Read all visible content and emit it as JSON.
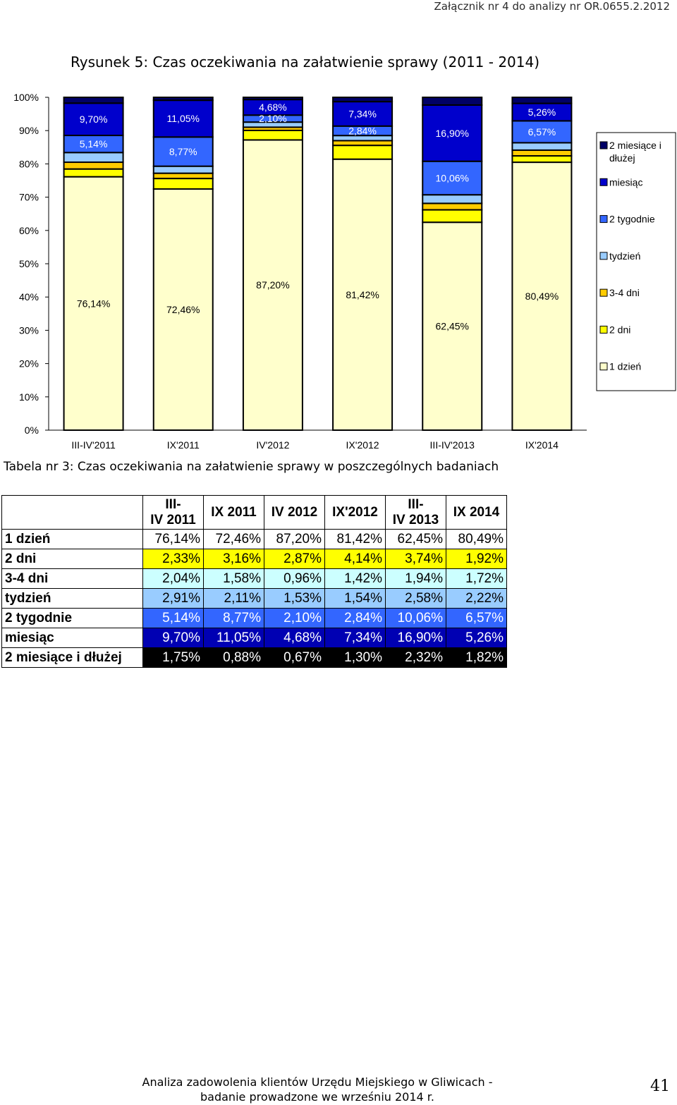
{
  "header": {
    "note": "Załącznik nr 4 do analizy nr OR.0655.2.2012"
  },
  "figure_title": "Rysunek 5: Czas oczekiwania na załatwienie sprawy (2011 - 2014)",
  "chart_data": {
    "type": "bar",
    "stacked": true,
    "percent_stacked": true,
    "categories": [
      "III-IV'2011",
      "IX'2011",
      "IV'2012",
      "IX'2012",
      "III-IV'2013",
      "IX'2014"
    ],
    "series": [
      {
        "name": "1 dzień",
        "values": [
          76.14,
          72.46,
          87.2,
          81.42,
          62.45,
          80.49
        ],
        "color": "#ffffcc",
        "label_color": "#000000",
        "data_labels": [
          "76,14%",
          "72,46%",
          "87,20%",
          "81,42%",
          "62,45%",
          "80,49%"
        ]
      },
      {
        "name": "2 dni",
        "values": [
          2.33,
          3.16,
          2.87,
          4.14,
          3.74,
          1.92
        ],
        "color": "#ffff00"
      },
      {
        "name": "3-4 dni",
        "values": [
          2.04,
          1.58,
          0.96,
          1.42,
          1.94,
          1.72
        ],
        "color": "#ffcc00"
      },
      {
        "name": "tydzień",
        "values": [
          2.91,
          2.11,
          1.53,
          1.54,
          2.58,
          2.22
        ],
        "color": "#99ccff"
      },
      {
        "name": "2 tygodnie",
        "values": [
          5.14,
          8.77,
          2.1,
          2.84,
          10.06,
          6.57
        ],
        "color": "#3366ff",
        "label_color": "#ffffff",
        "data_labels": [
          "5,14%",
          "8,77%",
          "2,10%",
          "2,84%",
          "10,06%",
          "6,57%"
        ]
      },
      {
        "name": "miesiąc",
        "values": [
          9.7,
          11.05,
          4.68,
          7.34,
          16.9,
          5.26
        ],
        "color": "#0000cc",
        "label_color": "#ffffff",
        "data_labels": [
          "9,70%",
          "11,05%",
          "4,68%",
          "7,34%",
          "16,90%",
          "5,26%"
        ]
      },
      {
        "name": "2 miesiące i dłużej",
        "values": [
          1.75,
          0.88,
          0.67,
          1.3,
          2.32,
          1.82
        ],
        "color": "#000066"
      }
    ],
    "y_ticks": [
      "0%",
      "10%",
      "20%",
      "30%",
      "40%",
      "50%",
      "60%",
      "70%",
      "80%",
      "90%",
      "100%"
    ],
    "ylim": [
      0,
      100
    ],
    "legend_position": "right",
    "legend_order": [
      "2 miesiące i dłużej",
      "miesiąc",
      "2 tygodnie",
      "tydzień",
      "3-4 dni",
      "2 dni",
      "1 dzień"
    ],
    "grid": false
  },
  "table": {
    "caption": "Tabela nr 3: Czas oczekiwania na załatwienie sprawy w poszczególnych badaniach",
    "columns": [
      "III-IV 2011",
      "IX 2011",
      "IV 2012",
      "IX'2012",
      "III-IV 2013",
      "IX 2014"
    ],
    "rows": [
      {
        "label": "1 dzień",
        "values": [
          "76,14%",
          "72,46%",
          "87,20%",
          "81,42%",
          "62,45%",
          "80,49%"
        ]
      },
      {
        "label": "2 dni",
        "values": [
          "2,33%",
          "3,16%",
          "2,87%",
          "4,14%",
          "3,74%",
          "1,92%"
        ]
      },
      {
        "label": "3-4 dni",
        "values": [
          "2,04%",
          "1,58%",
          "0,96%",
          "1,42%",
          "1,94%",
          "1,72%"
        ]
      },
      {
        "label": "tydzień",
        "values": [
          "2,91%",
          "2,11%",
          "1,53%",
          "1,54%",
          "2,58%",
          "2,22%"
        ]
      },
      {
        "label": "2 tygodnie",
        "values": [
          "5,14%",
          "8,77%",
          "2,10%",
          "2,84%",
          "10,06%",
          "6,57%"
        ]
      },
      {
        "label": "miesiąc",
        "values": [
          "9,70%",
          "11,05%",
          "4,68%",
          "7,34%",
          "16,90%",
          "5,26%"
        ]
      },
      {
        "label": "2 miesiące i dłużej",
        "values": [
          "1,75%",
          "0,88%",
          "0,67%",
          "1,30%",
          "2,32%",
          "1,82%"
        ]
      }
    ]
  },
  "footer": {
    "line1": "Analiza zadowolenia klientów Urzędu Miejskiego w Gliwicach -",
    "line2": "badanie prowadzone we wrześniu 2014 r.",
    "page_number": "41"
  }
}
